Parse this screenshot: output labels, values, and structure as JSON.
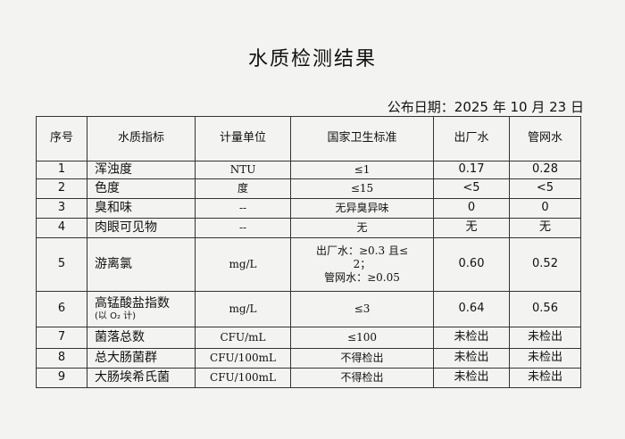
{
  "title": "水质检测结果",
  "publish_date": "公布日期：2025 年 10 月 23 日",
  "headers": [
    "序号",
    "水质指标",
    "计量单位",
    "国家卫生标准",
    "出厂水",
    "管网水"
  ],
  "rows": [
    {
      "no": "1",
      "item": "浑浊度",
      "unit": "NTU",
      "standard": "≤1",
      "plant": "0.17",
      "network": "0.28"
    },
    {
      "no": "2",
      "item": "色度",
      "unit": "度",
      "standard": "≤15",
      "plant": "<5",
      "network": "<5"
    },
    {
      "no": "3",
      "item": "臭和味",
      "unit": "--",
      "standard": "无异臭异味",
      "plant": "0",
      "network": "0"
    },
    {
      "no": "4",
      "item": "肉眼可见物",
      "unit": "--",
      "standard": "无",
      "plant": "无",
      "network": "无"
    },
    {
      "no": "5",
      "item": "游离氯",
      "unit": "mg/L",
      "standard": "出厂水：≥0.3 且≤ 2；",
      "standard2": "管网水：≥0.05",
      "plant": "0.60",
      "network": "0.52"
    },
    {
      "no": "6",
      "item": "高锰酸盐指数",
      "item_sub": "(以 O₂ 计)",
      "unit": "mg/L",
      "standard": "≤3",
      "plant": "0.64",
      "network": "0.56"
    },
    {
      "no": "7",
      "item": "菌落总数",
      "unit": "CFU/mL",
      "standard": "≤100",
      "plant": "未检出",
      "network": "未检出"
    },
    {
      "no": "8",
      "item": "总大肠菌群",
      "unit": "CFU/100mL",
      "standard": "不得检出",
      "plant": "未检出",
      "network": "未检出"
    },
    {
      "no": "9",
      "item": "大肠埃希氏菌",
      "unit": "CFU/100mL",
      "standard": "不得检出",
      "plant": "未检出",
      "network": "未检出"
    }
  ]
}
